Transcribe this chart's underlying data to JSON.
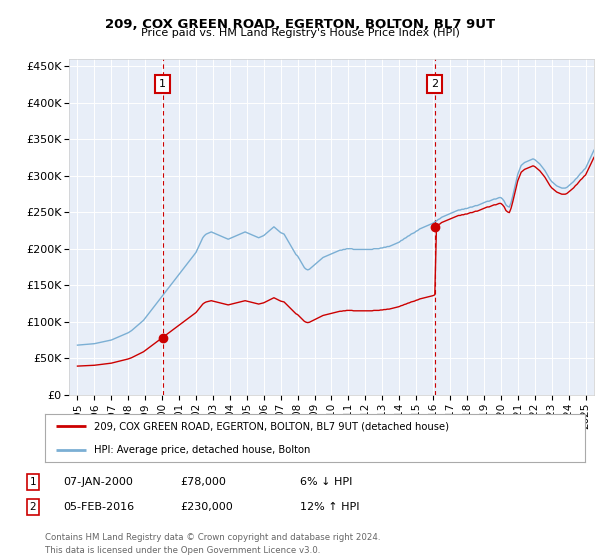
{
  "title": "209, COX GREEN ROAD, EGERTON, BOLTON, BL7 9UT",
  "subtitle": "Price paid vs. HM Land Registry's House Price Index (HPI)",
  "line1_label": "209, COX GREEN ROAD, EGERTON, BOLTON, BL7 9UT (detached house)",
  "line2_label": "HPI: Average price, detached house, Bolton",
  "line1_color": "#cc0000",
  "line2_color": "#7bafd4",
  "bg_color": "#e8eef8",
  "ann1_x": 2000.04,
  "ann1_y": 78000,
  "ann2_x": 2016.1,
  "ann2_y": 230000,
  "ann1_date": "07-JAN-2000",
  "ann1_price": "£78,000",
  "ann1_change": "6% ↓ HPI",
  "ann2_date": "05-FEB-2016",
  "ann2_price": "£230,000",
  "ann2_change": "12% ↑ HPI",
  "ylabel_ticks": [
    "£0",
    "£50K",
    "£100K",
    "£150K",
    "£200K",
    "£250K",
    "£300K",
    "£350K",
    "£400K",
    "£450K"
  ],
  "ytick_values": [
    0,
    50000,
    100000,
    150000,
    200000,
    250000,
    300000,
    350000,
    400000,
    450000
  ],
  "ylim": [
    0,
    460000
  ],
  "xlim": [
    1994.5,
    2025.5
  ],
  "xtick_years": [
    1995,
    1996,
    1997,
    1998,
    1999,
    2000,
    2001,
    2002,
    2003,
    2004,
    2005,
    2006,
    2007,
    2008,
    2009,
    2010,
    2011,
    2012,
    2013,
    2014,
    2015,
    2016,
    2017,
    2018,
    2019,
    2020,
    2021,
    2022,
    2023,
    2024,
    2025
  ],
  "footer": "Contains HM Land Registry data © Crown copyright and database right 2024.\nThis data is licensed under the Open Government Licence v3.0.",
  "hpi_values": [
    68000,
    68200,
    68400,
    68600,
    68800,
    69000,
    69200,
    69400,
    69600,
    69800,
    70000,
    70500,
    71000,
    71500,
    72000,
    72500,
    73000,
    73500,
    74000,
    74500,
    75000,
    76000,
    77000,
    78000,
    79000,
    80000,
    81000,
    82000,
    83000,
    84000,
    85000,
    86500,
    88000,
    90000,
    92000,
    94000,
    96000,
    98000,
    100000,
    102000,
    105000,
    108000,
    111000,
    114000,
    117000,
    120000,
    123000,
    126000,
    129000,
    132000,
    135000,
    138000,
    141000,
    144000,
    147000,
    150000,
    153000,
    156000,
    159000,
    162000,
    165000,
    168000,
    171000,
    174000,
    177000,
    180000,
    183000,
    186000,
    189000,
    192000,
    195000,
    200000,
    205000,
    210000,
    215000,
    218000,
    220000,
    221000,
    222000,
    223000,
    222000,
    221000,
    220000,
    219000,
    218000,
    217000,
    216000,
    215000,
    214000,
    213000,
    214000,
    215000,
    216000,
    217000,
    218000,
    219000,
    220000,
    221000,
    222000,
    223000,
    222000,
    221000,
    220000,
    219000,
    218000,
    217000,
    216000,
    215000,
    216000,
    217000,
    218000,
    220000,
    222000,
    224000,
    226000,
    228000,
    230000,
    228000,
    226000,
    224000,
    222000,
    221000,
    220000,
    216000,
    212000,
    208000,
    204000,
    200000,
    196000,
    192000,
    190000,
    186000,
    182000,
    178000,
    174000,
    172000,
    171000,
    172000,
    174000,
    176000,
    178000,
    180000,
    182000,
    184000,
    186000,
    188000,
    189000,
    190000,
    191000,
    192000,
    193000,
    194000,
    195000,
    196000,
    197000,
    198000,
    198000,
    199000,
    199000,
    200000,
    200000,
    200000,
    200000,
    199000,
    199000,
    199000,
    199000,
    199000,
    199000,
    199000,
    199000,
    199000,
    199000,
    199000,
    199000,
    200000,
    200000,
    200000,
    200000,
    201000,
    201000,
    202000,
    202000,
    203000,
    203000,
    204000,
    205000,
    206000,
    207000,
    208000,
    209000,
    211000,
    212000,
    214000,
    215000,
    217000,
    218000,
    220000,
    221000,
    222000,
    224000,
    225000,
    227000,
    228000,
    229000,
    230000,
    231000,
    232000,
    233000,
    234000,
    235000,
    237000,
    238000,
    240000,
    241000,
    243000,
    244000,
    245000,
    246000,
    247000,
    248000,
    249000,
    250000,
    251000,
    252000,
    253000,
    253000,
    254000,
    254000,
    255000,
    255000,
    256000,
    257000,
    257000,
    258000,
    259000,
    259000,
    260000,
    261000,
    262000,
    263000,
    264000,
    265000,
    265000,
    266000,
    267000,
    268000,
    268000,
    269000,
    270000,
    270000,
    268000,
    265000,
    260000,
    258000,
    257000,
    263000,
    272000,
    282000,
    292000,
    302000,
    308000,
    314000,
    316000,
    318000,
    319000,
    320000,
    321000,
    322000,
    323000,
    322000,
    320000,
    318000,
    316000,
    313000,
    310000,
    307000,
    303000,
    299000,
    295000,
    292000,
    290000,
    288000,
    286000,
    285000,
    284000,
    283000,
    283000,
    283000,
    284000,
    286000,
    288000,
    290000,
    292000,
    295000,
    297000,
    300000,
    303000,
    305000,
    308000,
    310000,
    315000,
    320000,
    325000,
    330000,
    335000
  ],
  "hpi_start_year": 1995.0,
  "hpi_step": 0.1,
  "prop_hpi_scale1": 0.97,
  "sale1_year": 2000.04,
  "sale1_val": 78000,
  "sale2_year": 2016.1,
  "sale2_val": 230000
}
